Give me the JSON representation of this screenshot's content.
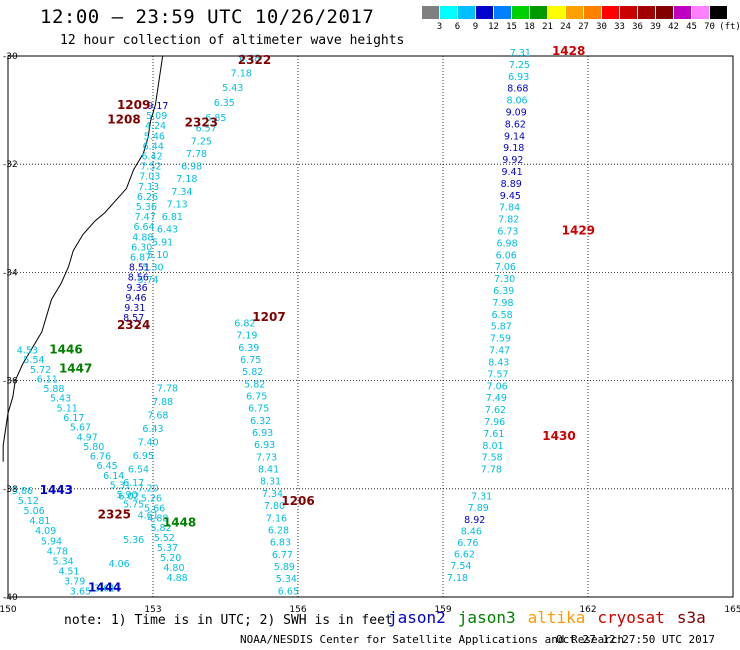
{
  "title": "12:00 – 23:59 UTC 10/26/2017",
  "subtitle": "12 hour collection of altimeter wave heights",
  "legend": {
    "unit": "(ft)",
    "stops": [
      {
        "label": "",
        "color": "#7f7f7f"
      },
      {
        "label": "3",
        "color": "#00ffff"
      },
      {
        "label": "6",
        "color": "#00bfff"
      },
      {
        "label": "9",
        "color": "#0000cd"
      },
      {
        "label": "12",
        "color": "#0080ff"
      },
      {
        "label": "15",
        "color": "#00d000"
      },
      {
        "label": "18",
        "color": "#009a00"
      },
      {
        "label": "21",
        "color": "#ffff00"
      },
      {
        "label": "24",
        "color": "#ffa000"
      },
      {
        "label": "27",
        "color": "#ff8000"
      },
      {
        "label": "30",
        "color": "#ff0000"
      },
      {
        "label": "33",
        "color": "#c80000"
      },
      {
        "label": "36",
        "color": "#a00000"
      },
      {
        "label": "39",
        "color": "#800000"
      },
      {
        "label": "42",
        "color": "#c000c0"
      },
      {
        "label": "45",
        "color": "#ff80ff"
      },
      {
        "label": "70",
        "color": "#000000"
      }
    ]
  },
  "map": {
    "lon_range": [
      150,
      165
    ],
    "lat_range": [
      -40,
      -30
    ],
    "lon_ticks": [
      "150",
      "153",
      "156",
      "159",
      "162",
      "165"
    ],
    "lat_ticks": [
      "-30",
      "-32",
      "-34",
      "-36",
      "-38",
      "-40"
    ]
  },
  "colors": {
    "jason2": "#0000cc",
    "jason3": "#008000",
    "altika": "#ff9900",
    "cryosat": "#cc0000",
    "s3a": "#800000",
    "light": "#00bfe0",
    "mid": "#0000cd"
  },
  "passes": [
    {
      "label": "2322",
      "color": "s3a",
      "lon": 155.1,
      "lat": -30.15
    },
    {
      "label": "1209",
      "color": "s3a",
      "lon": 152.6,
      "lat": -30.98
    },
    {
      "label": "1208",
      "color": "s3a",
      "lon": 152.4,
      "lat": -31.25
    },
    {
      "label": "2323",
      "color": "s3a",
      "lon": 154.0,
      "lat": -31.3
    },
    {
      "label": "1428",
      "color": "cryosat",
      "lon": 161.6,
      "lat": -29.98
    },
    {
      "label": "1429",
      "color": "cryosat",
      "lon": 161.8,
      "lat": -33.3
    },
    {
      "label": "1430",
      "color": "cryosat",
      "lon": 161.4,
      "lat": -37.1
    },
    {
      "label": "2324",
      "color": "s3a",
      "lon": 152.6,
      "lat": -35.05
    },
    {
      "label": "1207",
      "color": "s3a",
      "lon": 155.4,
      "lat": -34.9
    },
    {
      "label": "1206",
      "color": "s3a",
      "lon": 156.0,
      "lat": -38.3
    },
    {
      "label": "2325",
      "color": "s3a",
      "lon": 152.2,
      "lat": -38.55
    },
    {
      "label": "1446",
      "color": "jason3",
      "lon": 151.2,
      "lat": -35.5
    },
    {
      "label": "1447",
      "color": "jason3",
      "lon": 151.4,
      "lat": -35.85
    },
    {
      "label": "1448",
      "color": "jason3",
      "lon": 153.55,
      "lat": -38.7
    },
    {
      "label": "1443",
      "color": "jason2",
      "lon": 151.0,
      "lat": -38.1
    },
    {
      "label": "1444",
      "color": "jason2",
      "lon": 152.0,
      "lat": -39.9
    }
  ],
  "tracks": [
    {
      "name": "s3a-2322",
      "start": [
        155.0,
        -30.1
      ],
      "end": [
        154.3,
        -31.2
      ],
      "values": [
        "6.48",
        "7.18",
        "5.43",
        "6.35",
        "6.85"
      ]
    },
    {
      "name": "s3a-2323",
      "start": [
        154.1,
        -31.4
      ],
      "end": [
        152.9,
        -34.2
      ],
      "values": [
        "6.57",
        "7.25",
        "7.78",
        "6.98",
        "7.18",
        "7.34",
        "7.13",
        "6.81",
        "6.43",
        "5.91",
        "5.10",
        "5.30",
        "5.74"
      ]
    },
    {
      "name": "s3a-1209",
      "start": [
        153.1,
        -30.98
      ],
      "end": [
        152.6,
        -34.9
      ],
      "values": [
        "9.17",
        "5.09",
        "4.24",
        "5.46",
        "6.44",
        "6.42",
        "7.52",
        "7.03",
        "7.13",
        "6.26",
        "5.36",
        "7.47",
        "6.64",
        "4.88",
        "6.30",
        "6.87",
        "8.51",
        "8.56",
        "9.36",
        "9.46",
        "9.31",
        "8.57"
      ]
    },
    {
      "name": "s3a-1207",
      "start": [
        154.9,
        -35.0
      ],
      "end": [
        155.8,
        -39.95
      ],
      "values": [
        "6.82",
        "7.19",
        "6.39",
        "6.75",
        "5.82",
        "5.82",
        "6.75",
        "6.75",
        "6.32",
        "6.93",
        "6.93",
        "7.73",
        "8.41",
        "8.31",
        "7.34",
        "7.80",
        "7.16",
        "6.28",
        "6.83",
        "6.77",
        "5.89",
        "5.34",
        "6.65"
      ]
    },
    {
      "name": "cryosat-1428",
      "start": [
        160.6,
        -30.0
      ],
      "end": [
        160.0,
        -37.7
      ],
      "values": [
        "7.31",
        "7.25",
        "6.93",
        "8.68",
        "8.06",
        "9.09",
        "8.62",
        "9.14",
        "9.18",
        "9.92",
        "9.41",
        "8.89",
        "9.45",
        "7.84",
        "7.82",
        "6.73",
        "6.98",
        "6.06",
        "7.06",
        "7.30",
        "6.39",
        "7.98",
        "6.58",
        "5.87",
        "7.59",
        "7.47",
        "8.43",
        "7.57",
        "7.06",
        "7.49",
        "7.62",
        "7.96",
        "7.61",
        "8.01",
        "7.58",
        "7.78"
      ]
    },
    {
      "name": "cryosat-1430",
      "start": [
        159.8,
        -38.2
      ],
      "end": [
        159.3,
        -39.7
      ],
      "values": [
        "7.31",
        "7.89",
        "8.92",
        "8.46",
        "6.76",
        "6.62",
        "7.54",
        "7.18"
      ]
    },
    {
      "name": "jason3-1446",
      "start": [
        150.4,
        -35.5
      ],
      "end": [
        152.6,
        -38.35
      ],
      "values": [
        "4.53",
        "5.54",
        "5.72",
        "6.11",
        "5.88",
        "5.43",
        "5.11",
        "6.17",
        "5.67",
        "4.97",
        "5.80",
        "6.76",
        "6.45",
        "6.14",
        "5.31",
        "5.90",
        "5.75"
      ]
    },
    {
      "name": "jason3-1448",
      "start": [
        152.9,
        -38.05
      ],
      "end": [
        153.5,
        -39.7
      ],
      "values": [
        "7.20",
        "5.26",
        "5.66",
        "4.88",
        "5.82",
        "5.52",
        "5.37",
        "5.20",
        "4.80",
        "4.88"
      ]
    },
    {
      "name": "jason3-1447",
      "start": [
        153.3,
        -36.2
      ],
      "end": [
        152.5,
        -38.2
      ],
      "values": [
        "7.78",
        "7.88",
        "7.68",
        "6.43",
        "7.40",
        "6.95",
        "6.54",
        "6.17",
        "6.02"
      ]
    },
    {
      "name": "jason2-1443",
      "start": [
        150.3,
        -38.1
      ],
      "end": [
        151.5,
        -39.95
      ],
      "values": [
        "5.86",
        "5.12",
        "5.06",
        "4.81",
        "4.09",
        "5.94",
        "4.78",
        "5.34",
        "4.51",
        "3.79",
        "3.65"
      ]
    },
    {
      "name": "jason2-1444",
      "start": [
        152.9,
        -38.55
      ],
      "end": [
        152.0,
        -39.9
      ],
      "values": [
        "4.61",
        "5.36",
        "4.06",
        "3.61"
      ]
    }
  ],
  "note": "note: 1) Time is in UTC; 2) SWH is in feet",
  "satellites": [
    {
      "name": "jason2",
      "color": "#0000cc"
    },
    {
      "name": "jason3",
      "color": "#008000"
    },
    {
      "name": "altika",
      "color": "#ff9900"
    },
    {
      "name": "cryosat",
      "color": "#cc0000"
    },
    {
      "name": "s3a",
      "color": "#800000"
    }
  ],
  "credit": "NOAA/NESDIS Center for Satellite Applications and Research",
  "timestamp": "Oct 27 12:27:50 UTC 2017"
}
